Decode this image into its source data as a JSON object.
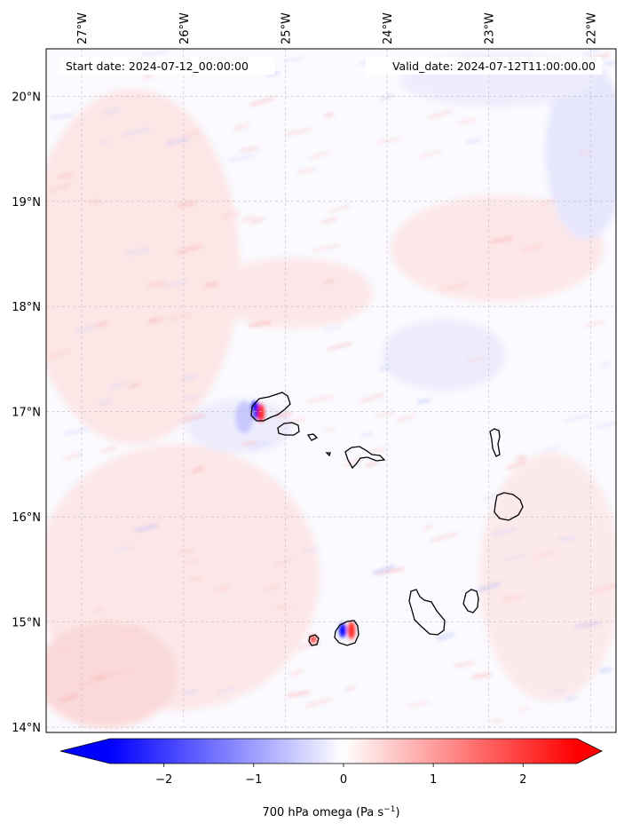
{
  "map": {
    "start_label": "Start date: 2024-07-12_00:00:00",
    "valid_label": "Valid_date: 2024-07-12T11:00:00.00",
    "lon_ticks": [
      "27°W",
      "26°W",
      "25°W",
      "24°W",
      "23°W",
      "22°W"
    ],
    "lat_ticks": [
      "20°N",
      "19°N",
      "18°N",
      "17°N",
      "16°N",
      "15°N",
      "14°N"
    ],
    "lon_values": [
      -27,
      -26,
      -25,
      -24,
      -23,
      -22
    ],
    "lat_values": [
      20,
      19,
      18,
      17,
      16,
      15,
      14
    ],
    "extent": {
      "lon_min": -27.35,
      "lon_max": -21.75,
      "lat_min": 13.95,
      "lat_max": 20.45
    },
    "field": "700 hPa omega",
    "gridlines": true,
    "colors": {
      "negative": "#0000ff",
      "zero": "#ffffff",
      "positive": "#ff0000",
      "coastline": "#000000"
    }
  },
  "colorbar": {
    "ticks": [
      "−2",
      "−1",
      "0",
      "1",
      "2"
    ],
    "tick_values": [
      -2,
      -1,
      0,
      1,
      2
    ],
    "range": [
      -2.6,
      2.6
    ],
    "label_main": "700 hPa omega (Pa s",
    "label_exp": "−1",
    "label_tail": ")",
    "extend": "both"
  }
}
